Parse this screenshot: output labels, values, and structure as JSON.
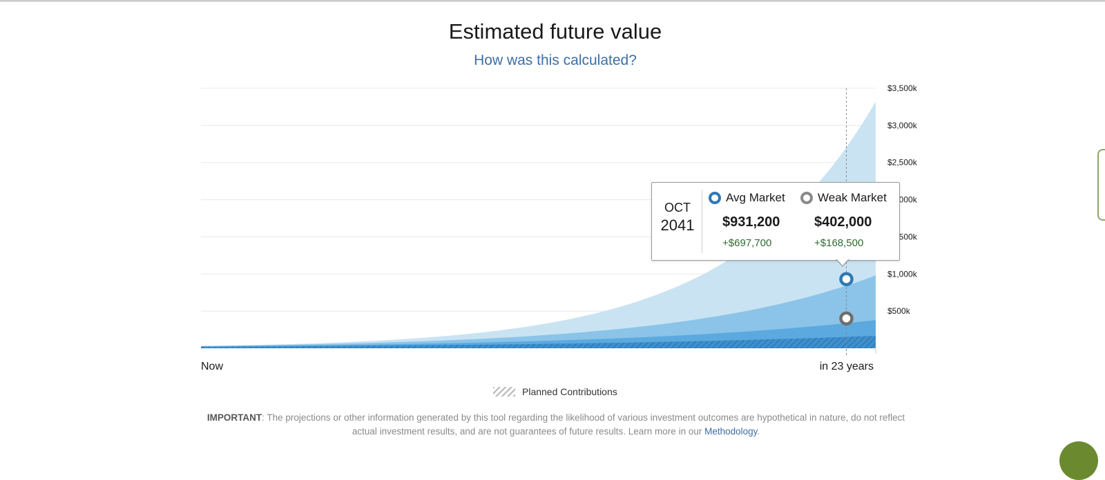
{
  "header": {
    "title": "Estimated future value",
    "calc_link": "How was this calculated?"
  },
  "chart_data": {
    "type": "area",
    "x_start_label": "Now",
    "x_end_label": "in 23 years",
    "x_years": [
      0,
      23
    ],
    "y_ticks": [
      "$500k",
      "$1,000k",
      "$1,500k",
      "$2,000k",
      "$2,500k",
      "$3,000k",
      "$3,500k"
    ],
    "y_tick_values": [
      500,
      1000,
      1500,
      2000,
      2500,
      3000,
      3500
    ],
    "ylim": [
      0,
      3500
    ],
    "y_unit": "thousands of dollars",
    "grid": true,
    "series": [
      {
        "color": "#c9e3f3",
        "start": 30,
        "end": 3320
      },
      {
        "color": "#8bc4e8",
        "start": 30,
        "end": 980
      },
      {
        "color": "#5ba9df",
        "start": 25,
        "end": 380
      },
      {
        "name": "Planned Contributions",
        "color": "#3f8fcc",
        "start": 20,
        "end": 168,
        "hatched": true
      }
    ],
    "highlight": {
      "year": 22,
      "avg_value": 931.2,
      "weak_value": 402.0
    }
  },
  "tooltip": {
    "month": "OCT",
    "year": "2041",
    "avg": {
      "label": "Avg Market",
      "value": "$931,200",
      "gain": "+$697,700"
    },
    "weak": {
      "label": "Weak Market",
      "value": "$402,000",
      "gain": "+$168,500"
    }
  },
  "legend": {
    "label": "Planned Contributions"
  },
  "disclaimer": {
    "important": "IMPORTANT",
    "text": ": The projections or other information generated by this tool regarding the likelihood of various investment outcomes are hypothetical in nature, do not reflect actual investment results, and are not guarantees of future results. Learn more in our ",
    "link": "Methodology",
    "end": "."
  },
  "colors": {
    "accent_blue": "#2f79b5",
    "link_blue": "#3d6ea6",
    "gain_green": "#2d6b2d",
    "weak_gray": "#8a8a8a"
  }
}
